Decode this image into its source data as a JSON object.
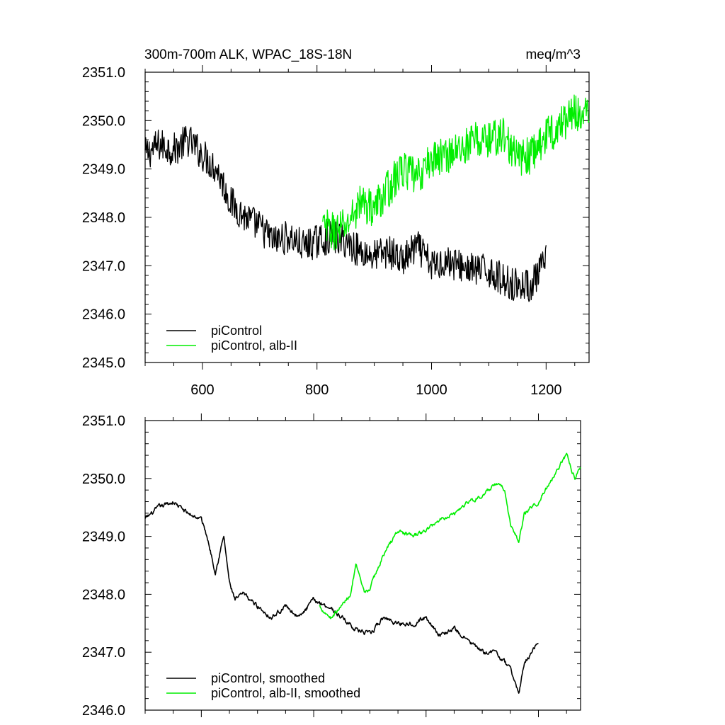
{
  "figure": {
    "title_left": "300m-700m ALK, WPAC_18S-18N",
    "title_right": "meq/m^3"
  },
  "colors": {
    "piControl": "#000000",
    "alb": "#00ee00"
  },
  "chart_data": [
    {
      "type": "line",
      "panel": "top",
      "xlim": [
        500,
        1275
      ],
      "ylim": [
        2345.0,
        2351.0
      ],
      "xticks": [
        600,
        800,
        1000,
        1200
      ],
      "yticks": [
        "2345.0",
        "2346.0",
        "2347.0",
        "2348.0",
        "2349.0",
        "2350.0",
        "2351.0"
      ],
      "legend_position": "bottom-left",
      "series": [
        {
          "name": "piControl",
          "color": "#000000",
          "x": [
            500,
            525,
            550,
            575,
            600,
            625,
            650,
            675,
            700,
            725,
            750,
            775,
            800,
            825,
            850,
            875,
            900,
            925,
            950,
            975,
            1000,
            1025,
            1050,
            1075,
            1100,
            1125,
            1150,
            1175,
            1200
          ],
          "y": [
            2349.3,
            2349.5,
            2349.4,
            2349.6,
            2349.3,
            2349.0,
            2348.3,
            2348.0,
            2347.8,
            2347.5,
            2347.6,
            2347.4,
            2347.5,
            2347.6,
            2347.5,
            2347.3,
            2347.2,
            2347.3,
            2347.1,
            2347.4,
            2347.0,
            2347.1,
            2347.0,
            2346.9,
            2346.9,
            2346.7,
            2346.6,
            2346.6,
            2347.1
          ],
          "noise": 0.35
        },
        {
          "name": "piControl, alb-II",
          "color": "#00ee00",
          "x": [
            810,
            830,
            850,
            875,
            900,
            925,
            950,
            975,
            1000,
            1025,
            1050,
            1075,
            1100,
            1125,
            1150,
            1175,
            1200,
            1225,
            1250,
            1275
          ],
          "y": [
            2347.8,
            2347.7,
            2347.8,
            2348.3,
            2348.2,
            2348.6,
            2349.0,
            2348.8,
            2349.2,
            2349.3,
            2349.4,
            2349.6,
            2349.6,
            2349.7,
            2349.2,
            2349.3,
            2349.7,
            2349.9,
            2350.2,
            2350.1
          ],
          "noise": 0.4
        }
      ]
    },
    {
      "type": "line",
      "panel": "bottom",
      "xlim": [
        500,
        1275
      ],
      "ylim": [
        2346.0,
        2351.0
      ],
      "xticks": [
        600,
        800,
        1000,
        1200
      ],
      "yticks": [
        "2346.0",
        "2347.0",
        "2348.0",
        "2349.0",
        "2350.0",
        "2351.0"
      ],
      "legend_position": "bottom-left",
      "series": [
        {
          "name": "piControl, smoothed",
          "color": "#000000",
          "x": [
            500,
            525,
            550,
            575,
            600,
            610,
            625,
            640,
            650,
            660,
            675,
            700,
            725,
            750,
            775,
            800,
            825,
            850,
            875,
            900,
            925,
            950,
            975,
            1000,
            1025,
            1050,
            1075,
            1100,
            1125,
            1150,
            1165,
            1175,
            1200
          ],
          "y": [
            2349.3,
            2349.5,
            2349.6,
            2349.4,
            2349.3,
            2349.0,
            2348.4,
            2349.0,
            2348.2,
            2347.9,
            2348.0,
            2347.8,
            2347.6,
            2347.8,
            2347.6,
            2347.9,
            2347.8,
            2347.6,
            2347.4,
            2347.3,
            2347.6,
            2347.5,
            2347.5,
            2347.6,
            2347.3,
            2347.4,
            2347.2,
            2347.0,
            2347.0,
            2346.7,
            2346.3,
            2346.8,
            2347.2
          ],
          "noise": 0.1
        },
        {
          "name": "piControl, alb-II, smoothed",
          "color": "#00ee00",
          "x": [
            810,
            830,
            850,
            865,
            875,
            890,
            900,
            925,
            950,
            975,
            1000,
            1025,
            1050,
            1075,
            1100,
            1125,
            1140,
            1150,
            1165,
            1175,
            1200,
            1225,
            1250,
            1265,
            1275
          ],
          "y": [
            2347.8,
            2347.6,
            2347.8,
            2348.0,
            2348.5,
            2348.0,
            2348.1,
            2348.7,
            2349.1,
            2349.0,
            2349.1,
            2349.3,
            2349.4,
            2349.6,
            2349.7,
            2349.9,
            2349.8,
            2349.2,
            2348.9,
            2349.4,
            2349.6,
            2350.0,
            2350.4,
            2350.0,
            2350.2
          ],
          "noise": 0.09
        }
      ]
    }
  ]
}
